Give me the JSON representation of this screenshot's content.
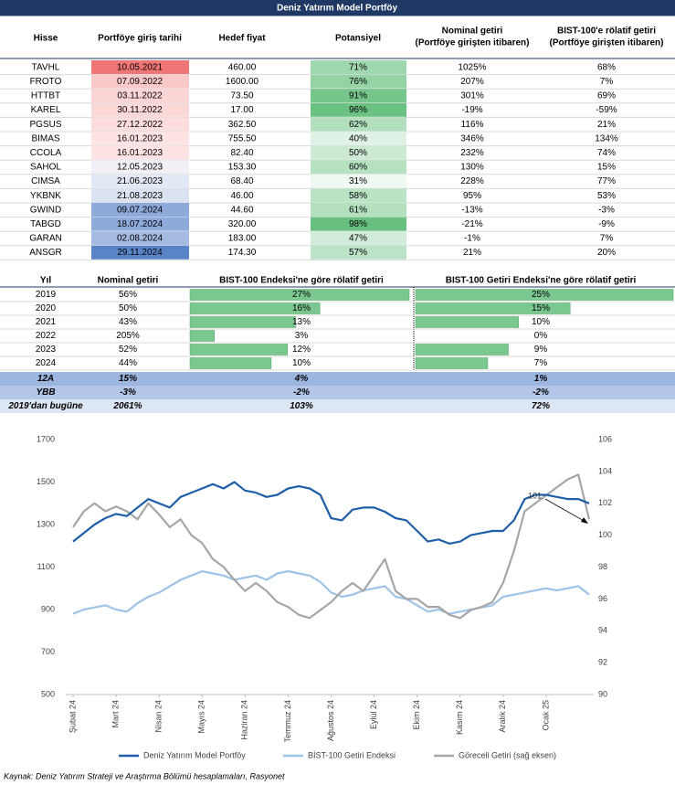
{
  "header": {
    "title": "Deniz Yatırım Model Portföy"
  },
  "table1": {
    "headers": [
      [
        "Hisse"
      ],
      [
        "Portföye giriş tarihi"
      ],
      [
        "Hedef fiyat"
      ],
      [
        "Potansiyel"
      ],
      [
        "Nominal getiri",
        "(Portföye girişten itibaren)"
      ],
      [
        "BIST-100'e rölatif getiri",
        "(Portföye girişten itibaren)"
      ]
    ],
    "rows": [
      [
        "TAVHL",
        "10.05.2021",
        "460.00",
        "71%",
        "1025%",
        "68%"
      ],
      [
        "FROTO",
        "07.09.2022",
        "1600.00",
        "76%",
        "207%",
        "7%"
      ],
      [
        "HTTBT",
        "03.11.2022",
        "73.50",
        "91%",
        "301%",
        "69%"
      ],
      [
        "KAREL",
        "30.11.2022",
        "17.00",
        "96%",
        "-19%",
        "-59%"
      ],
      [
        "PGSUS",
        "27.12.2022",
        "362.50",
        "62%",
        "116%",
        "21%"
      ],
      [
        "BIMAS",
        "16.01.2023",
        "755.50",
        "40%",
        "346%",
        "134%"
      ],
      [
        "CCOLA",
        "16.01.2023",
        "82.40",
        "50%",
        "232%",
        "74%"
      ],
      [
        "SAHOL",
        "12.05.2023",
        "153.30",
        "60%",
        "130%",
        "15%"
      ],
      [
        "CIMSA",
        "21.06.2023",
        "68.40",
        "31%",
        "228%",
        "77%"
      ],
      [
        "YKBNK",
        "21.08.2023",
        "46.00",
        "58%",
        "95%",
        "53%"
      ],
      [
        "GWIND",
        "09.07.2024",
        "44.60",
        "61%",
        "-13%",
        "-3%"
      ],
      [
        "TABGD",
        "18.07.2024",
        "320.00",
        "98%",
        "-21%",
        "-9%"
      ],
      [
        "GARAN",
        "02.08.2024",
        "183.00",
        "47%",
        "-1%",
        "7%"
      ],
      [
        "ANSGR",
        "29.11.2024",
        "174.30",
        "57%",
        "21%",
        "20%"
      ]
    ],
    "date_colors": [
      "#f07575",
      "#f9c8c8",
      "#fbd5d5",
      "#fbd8d8",
      "#fcdcdc",
      "#fde3e3",
      "#fde3e3",
      "#f1f0f6",
      "#e3e9f4",
      "#dbe3f1",
      "#8eaadb",
      "#8eaadb",
      "#a5bbe2",
      "#5a84c8"
    ],
    "potential_color": "#63be7b"
  },
  "table2": {
    "headers": [
      "Yıl",
      "Nominal getiri",
      "BIST-100 Endeksi'ne göre rölatif getiri",
      "BIST-100 Getiri Endeksi'ne göre rölatif getiri"
    ],
    "rows": [
      [
        "2019",
        "56%",
        "27%",
        "25%"
      ],
      [
        "2020",
        "50%",
        "16%",
        "15%"
      ],
      [
        "2021",
        "43%",
        "13%",
        "10%"
      ],
      [
        "2022",
        "205%",
        "3%",
        "0%"
      ],
      [
        "2023",
        "52%",
        "12%",
        "9%"
      ],
      [
        "2024",
        "44%",
        "10%",
        "7%"
      ]
    ],
    "summary": [
      [
        "12A",
        "15%",
        "4%",
        "1%"
      ],
      [
        "YBB",
        "-3%",
        "-2%",
        "-2%"
      ],
      [
        "2019'dan bugüne",
        "2061%",
        "103%",
        "72%"
      ]
    ],
    "bar_color": "#63be7b"
  },
  "chart_data": {
    "type": "line",
    "categories": [
      "Şubat 24",
      null,
      null,
      null,
      "Mart 24",
      null,
      null,
      null,
      "Nisan 24",
      null,
      null,
      null,
      "Mayıs 24",
      null,
      null,
      null,
      "Haziran 24",
      null,
      null,
      null,
      "Temmuz 24",
      null,
      null,
      null,
      "Ağustos 24",
      null,
      null,
      null,
      "Eylül 24",
      null,
      null,
      null,
      "Ekim 24",
      null,
      null,
      null,
      "Kasım 24",
      null,
      null,
      null,
      "Aralık 24",
      null,
      null,
      null,
      "Ocak 25",
      null,
      null,
      null,
      null
    ],
    "series": [
      {
        "name": "Deniz Yatırım Model Portföy",
        "color": "#1f5fa8",
        "values": [
          1220,
          1260,
          1300,
          1330,
          1350,
          1340,
          1380,
          1420,
          1400,
          1380,
          1430,
          1450,
          1470,
          1490,
          1470,
          1500,
          1460,
          1450,
          1430,
          1440,
          1470,
          1480,
          1470,
          1440,
          1330,
          1320,
          1370,
          1380,
          1380,
          1360,
          1330,
          1320,
          1270,
          1220,
          1230,
          1210,
          1220,
          1250,
          1260,
          1270,
          1270,
          1320,
          1420,
          1440,
          1440,
          1430,
          1420,
          1420,
          1400
        ]
      },
      {
        "name": "BİST-100 Getiri Endeksi",
        "color": "#9dc3e6",
        "values": [
          880,
          900,
          910,
          920,
          900,
          890,
          930,
          960,
          980,
          1010,
          1040,
          1060,
          1080,
          1070,
          1060,
          1040,
          1050,
          1060,
          1040,
          1070,
          1080,
          1070,
          1060,
          1030,
          980,
          960,
          970,
          990,
          1000,
          1010,
          960,
          950,
          920,
          890,
          900,
          880,
          890,
          900,
          910,
          920,
          960,
          970,
          980,
          990,
          1000,
          990,
          1000,
          1010,
          970
        ]
      },
      {
        "name": "Göreceli Getiri (sağ eksen)",
        "color": "#a6a6a6",
        "axis": "y2",
        "values": [
          100.5,
          101.5,
          102,
          101.5,
          101.8,
          101.5,
          101,
          102,
          101.3,
          100.5,
          101,
          100,
          99.5,
          98.5,
          98,
          97.2,
          96.5,
          97,
          96.5,
          95.8,
          95.5,
          95,
          94.8,
          95.3,
          95.8,
          96.5,
          97,
          96.5,
          97.5,
          98.5,
          96.5,
          96,
          96,
          95.5,
          95.5,
          95,
          94.8,
          95.3,
          95.5,
          95.8,
          97,
          99,
          101.5,
          102,
          102.5,
          103,
          103.5,
          103.8,
          101
        ]
      }
    ],
    "ylim": [
      500,
      1700
    ],
    "yticks": [
      500,
      700,
      900,
      1100,
      1300,
      1500,
      1700
    ],
    "y2lim": [
      90,
      106
    ],
    "y2ticks": [
      90,
      92,
      94,
      96,
      98,
      100,
      102,
      104,
      106
    ],
    "annotation": "101"
  },
  "footer": {
    "source": "Kaynak: Deniz Yatırım Strateji ve Araştırma Bölümü hesaplamaları, Rasyonet"
  }
}
